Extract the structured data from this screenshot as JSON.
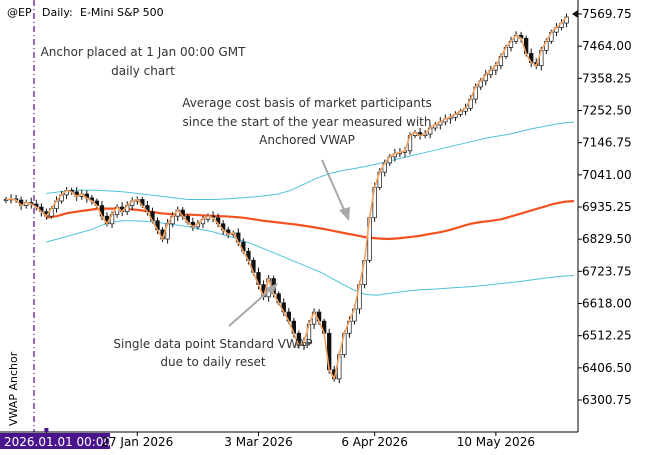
{
  "header": {
    "symbol": "@EP",
    "period": "Daily:",
    "instrument": "E-Mini S&P 500"
  },
  "chart_data": {
    "type": "candlestick",
    "ylim": [
      6220,
      7620
    ],
    "y_ticks": [
      "7569.75",
      "7464.00",
      "7358.25",
      "7252.50",
      "7146.75",
      "7041.00",
      "6935.25",
      "6829.50",
      "6723.75",
      "6618.00",
      "6512.25",
      "6406.50",
      "6300.75"
    ],
    "x_ticks": [
      {
        "label": "2026.01.01 00:00",
        "index": 8,
        "highlight": true
      },
      {
        "label": "27 Jan 2026",
        "index": 26
      },
      {
        "label": "3 Mar 2026",
        "index": 50
      },
      {
        "label": "6 Apr 2026",
        "index": 73
      },
      {
        "label": "10 May 2026",
        "index": 97
      }
    ],
    "anchor_index": 8,
    "anchor_label": "VWAP Anchor",
    "price_label": "7569.75",
    "closes": [
      6960,
      6962,
      6958,
      6940,
      6950,
      6945,
      6935,
      6920,
      6905,
      6930,
      6955,
      6975,
      6990,
      6985,
      6970,
      6978,
      6965,
      6955,
      6940,
      6905,
      6880,
      6910,
      6935,
      6920,
      6940,
      6955,
      6960,
      6940,
      6920,
      6890,
      6860,
      6830,
      6880,
      6905,
      6925,
      6905,
      6885,
      6870,
      6880,
      6895,
      6905,
      6900,
      6880,
      6860,
      6845,
      6850,
      6820,
      6790,
      6760,
      6720,
      6680,
      6640,
      6700,
      6650,
      6620,
      6590,
      6560,
      6520,
      6480,
      6490,
      6550,
      6590,
      6560,
      6520,
      6400,
      6370,
      6450,
      6520,
      6560,
      6600,
      6680,
      6760,
      6900,
      7000,
      7050,
      7080,
      7100,
      7110,
      7115,
      7120,
      7170,
      7180,
      7170,
      7175,
      7195,
      7205,
      7215,
      7225,
      7230,
      7240,
      7250,
      7260,
      7290,
      7330,
      7350,
      7370,
      7385,
      7400,
      7430,
      7460,
      7480,
      7500,
      7490,
      7440,
      7410,
      7400,
      7450,
      7480,
      7510,
      7525,
      7540,
      7560
    ],
    "series": [
      {
        "name": "Anchored VWAP",
        "color": "#f4511e",
        "values": [
          6900,
          6905,
          6915,
          6920,
          6925,
          6930,
          6930,
          6930,
          6928,
          6925,
          6920,
          6915,
          6912,
          6910,
          6910,
          6908,
          6906,
          6905,
          6903,
          6900,
          6895,
          6890,
          6886,
          6882,
          6878,
          6873,
          6868,
          6862,
          6855,
          6848,
          6842,
          6835,
          6832,
          6830,
          6832,
          6836,
          6840,
          6846,
          6852,
          6860,
          6870,
          6880,
          6886,
          6890,
          6895,
          6905,
          6915,
          6925,
          6935,
          6945,
          6952,
          6955
        ]
      },
      {
        "name": "Upper band",
        "color": "#4fc3d9",
        "values": [
          6980,
          6985,
          6990,
          6990,
          6990,
          6988,
          6985,
          6980,
          6975,
          6970,
          6965,
          6960,
          6960,
          6960,
          6962,
          6965,
          6968,
          6972,
          6978,
          6990,
          7010,
          7030,
          7045,
          7055,
          7062,
          7070,
          7080,
          7090,
          7100,
          7110,
          7120,
          7130,
          7140,
          7150,
          7160,
          7168,
          7175,
          7185,
          7195,
          7203,
          7210,
          7215
        ]
      },
      {
        "name": "Lower band",
        "color": "#4fc3d9",
        "values": [
          6820,
          6830,
          6840,
          6850,
          6860,
          6875,
          6885,
          6890,
          6890,
          6888,
          6885,
          6880,
          6875,
          6870,
          6862,
          6855,
          6845,
          6835,
          6822,
          6810,
          6795,
          6780,
          6765,
          6750,
          6735,
          6720,
          6700,
          6680,
          6662,
          6648,
          6645,
          6650,
          6655,
          6660,
          6663,
          6665,
          6667,
          6670,
          6672,
          6675,
          6678,
          6682,
          6686,
          6690,
          6695,
          6700,
          6704,
          6708,
          6710
        ]
      }
    ]
  },
  "annotations": {
    "anchor_text_line1": "Anchor placed at 1 Jan 00:00 GMT",
    "anchor_text_line2": "daily chart",
    "avg_text_line1": "Average cost basis of market participants",
    "avg_text_line2": "since the start of the year measured with",
    "avg_text_line3": "Anchored VWAP",
    "single_text_line1": "Single data point Standard VWAP",
    "single_text_line2": "due to daily reset"
  }
}
